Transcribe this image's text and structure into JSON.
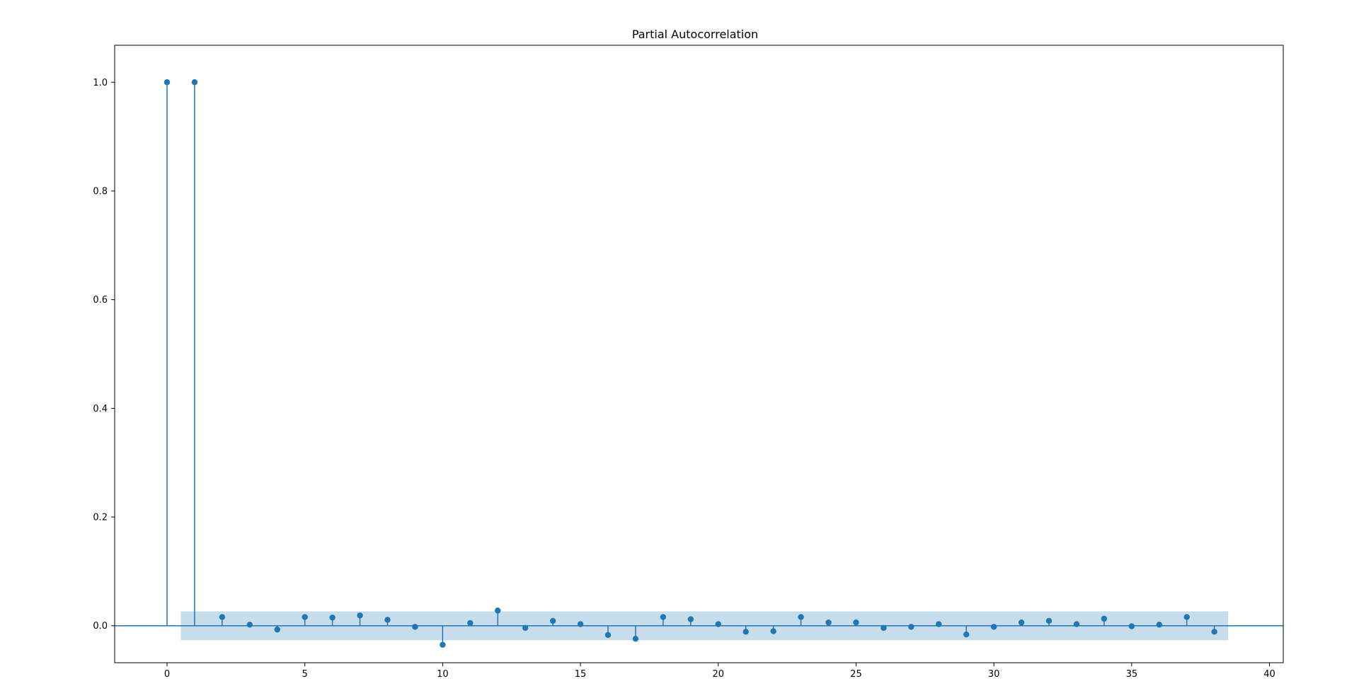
{
  "chart_data": {
    "type": "scatter",
    "title": "Partial Autocorrelation",
    "xlabel": "",
    "ylabel": "",
    "xlim": [
      -1.9,
      40.5
    ],
    "ylim": [
      -0.068,
      1.068
    ],
    "x_ticks": [
      0,
      5,
      10,
      15,
      20,
      25,
      30,
      35,
      40
    ],
    "y_ticks": [
      0.0,
      0.2,
      0.4,
      0.6,
      0.8,
      1.0
    ],
    "x_tick_labels": [
      "0",
      "5",
      "10",
      "15",
      "20",
      "25",
      "30",
      "35",
      "40"
    ],
    "y_tick_labels": [
      "0.0",
      "0.2",
      "0.4",
      "0.6",
      "0.8",
      "1.0"
    ],
    "grid": false,
    "legend": "none",
    "lags": [
      0,
      1,
      2,
      3,
      4,
      5,
      6,
      7,
      8,
      9,
      10,
      11,
      12,
      13,
      14,
      15,
      16,
      17,
      18,
      19,
      20,
      21,
      22,
      23,
      24,
      25,
      26,
      27,
      28,
      29,
      30,
      31,
      32,
      33,
      34,
      35,
      36,
      37,
      38
    ],
    "values": [
      1.0,
      1.0,
      0.016,
      0.002,
      -0.007,
      0.016,
      0.015,
      0.019,
      0.011,
      -0.002,
      -0.035,
      0.005,
      0.028,
      -0.004,
      0.009,
      0.003,
      -0.017,
      -0.024,
      0.016,
      0.012,
      0.003,
      -0.011,
      -0.01,
      0.016,
      0.006,
      0.006,
      -0.004,
      -0.002,
      0.003,
      -0.016,
      -0.002,
      0.006,
      0.009,
      0.003,
      0.013,
      -0.001,
      0.002,
      0.016,
      -0.011
    ],
    "confidence_band": {
      "lag_from": 0.5,
      "lag_to": 38.5,
      "lower": -0.0265,
      "upper": 0.0265
    },
    "colors": {
      "stem": "#1f77b4",
      "band": "#1f77b4",
      "band_opacity": 0.25,
      "axis": "#000000"
    }
  }
}
